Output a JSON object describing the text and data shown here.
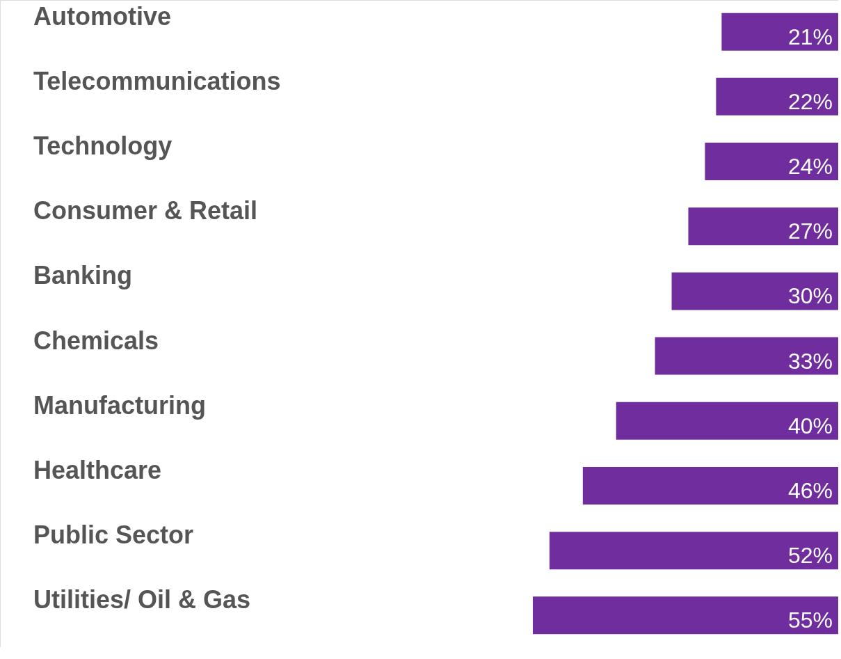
{
  "chart_data": {
    "type": "bar",
    "orientation": "horizontal",
    "categories": [
      "Automotive",
      "Telecommunications",
      "Technology",
      "Consumer & Retail",
      "Banking",
      "Chemicals",
      "Manufacturing",
      "Healthcare",
      "Public Sector",
      "Utilities/ Oil & Gas"
    ],
    "values": [
      21,
      22,
      24,
      27,
      30,
      33,
      40,
      46,
      52,
      55
    ],
    "value_labels": [
      "21%",
      "22%",
      "24%",
      "27%",
      "30%",
      "33%",
      "40%",
      "46%",
      "52%",
      "55%"
    ],
    "color": "#6f2d9e"
  }
}
